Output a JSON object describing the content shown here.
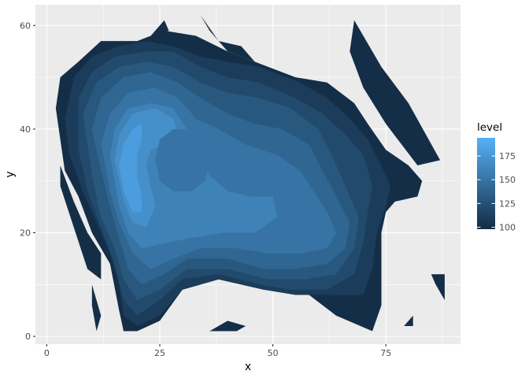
{
  "chart_data": {
    "type": "filled-contour",
    "title": "",
    "xlabel": "x",
    "ylabel": "y",
    "xlim": [
      -2.5,
      91.5
    ],
    "ylim": [
      -1.5,
      64
    ],
    "x_ticks": [
      0,
      25,
      50,
      75
    ],
    "x_tick_labels": [
      "0",
      "25",
      "50",
      "75"
    ],
    "y_ticks": [
      0,
      20,
      40,
      60
    ],
    "y_tick_labels": [
      "0",
      "20",
      "40",
      "60"
    ],
    "grid": true,
    "legend": {
      "title": "level",
      "position": "right",
      "range": [
        98,
        194
      ],
      "breaks": [
        100,
        125,
        150,
        175
      ],
      "break_labels": [
        "100",
        "125",
        "150",
        "175"
      ],
      "low_color": "#132B43",
      "high_color": "#56B1F7"
    },
    "levels": [
      {
        "level": 100,
        "polygons": [
          [
            [
              7,
              53
            ],
            [
              12,
              57
            ],
            [
              20,
              57
            ],
            [
              26,
              59
            ],
            [
              33,
              58
            ],
            [
              40,
              55
            ],
            [
              46,
              53
            ],
            [
              55,
              50
            ],
            [
              62,
              49
            ],
            [
              68,
              45
            ],
            [
              71,
              41
            ],
            [
              75,
              36
            ],
            [
              80,
              33
            ],
            [
              83,
              30
            ],
            [
              82,
              27
            ],
            [
              77,
              26
            ],
            [
              75,
              24
            ],
            [
              74,
              20
            ],
            [
              74,
              13
            ],
            [
              74,
              6
            ],
            [
              72,
              1
            ],
            [
              64,
              4
            ],
            [
              58,
              8
            ],
            [
              48,
              9
            ],
            [
              38,
              11
            ],
            [
              30,
              9
            ],
            [
              25,
              3
            ],
            [
              20,
              1
            ],
            [
              17,
              1
            ],
            [
              16,
              5
            ],
            [
              14,
              14
            ],
            [
              10,
              20
            ],
            [
              7,
              27
            ],
            [
              4,
              32
            ],
            [
              3,
              38
            ],
            [
              2,
              44
            ],
            [
              3,
              50
            ]
          ],
          [
            [
              68,
              61
            ],
            [
              74,
              52
            ],
            [
              80,
              45
            ],
            [
              87,
              34
            ],
            [
              82,
              33
            ],
            [
              75,
              41
            ],
            [
              70,
              48
            ],
            [
              67,
              55
            ]
          ],
          [
            [
              34,
              62
            ],
            [
              38,
              57
            ],
            [
              43,
              56
            ],
            [
              46,
              53
            ],
            [
              40,
              55
            ],
            [
              36,
              59
            ]
          ],
          [
            [
              26,
              61
            ],
            [
              23,
              58
            ],
            [
              27,
              59
            ]
          ],
          [
            [
              3,
              33
            ],
            [
              6,
              26
            ],
            [
              9,
              20
            ],
            [
              12,
              16
            ],
            [
              12,
              11
            ],
            [
              9,
              13
            ],
            [
              6,
              21
            ],
            [
              3,
              29
            ]
          ],
          [
            [
              10,
              10
            ],
            [
              12,
              4
            ],
            [
              11,
              1
            ],
            [
              10,
              6
            ]
          ],
          [
            [
              36,
              1
            ],
            [
              42,
              1
            ],
            [
              44,
              2
            ],
            [
              40,
              3
            ]
          ],
          [
            [
              85,
              12
            ],
            [
              88,
              12
            ],
            [
              88,
              7
            ],
            [
              86,
              10
            ]
          ],
          [
            [
              81,
              4
            ],
            [
              81,
              2
            ],
            [
              79,
              2
            ]
          ]
        ]
      },
      {
        "level": 110,
        "polygons": [
          [
            [
              6,
              50
            ],
            [
              10,
              54
            ],
            [
              16,
              56
            ],
            [
              22,
              57
            ],
            [
              28,
              56
            ],
            [
              34,
              54
            ],
            [
              40,
              53
            ],
            [
              47,
              52
            ],
            [
              56,
              49
            ],
            [
              62,
              46
            ],
            [
              67,
              42
            ],
            [
              71,
              38
            ],
            [
              74,
              33
            ],
            [
              76,
              29
            ],
            [
              75,
              25
            ],
            [
              73,
              20
            ],
            [
              72,
              13
            ],
            [
              70,
              8
            ],
            [
              63,
              8
            ],
            [
              55,
              8
            ],
            [
              48,
              9
            ],
            [
              38,
              11
            ],
            [
              30,
              9
            ],
            [
              25,
              4
            ],
            [
              20,
              2
            ],
            [
              17,
              4
            ],
            [
              16,
              10
            ],
            [
              14,
              16
            ],
            [
              11,
              22
            ],
            [
              8,
              28
            ],
            [
              5,
              35
            ],
            [
              4,
              42
            ]
          ]
        ]
      },
      {
        "level": 120,
        "polygons": [
          [
            [
              7,
              46
            ],
            [
              10,
              51
            ],
            [
              15,
              54
            ],
            [
              22,
              55
            ],
            [
              28,
              55
            ],
            [
              34,
              52
            ],
            [
              40,
              50
            ],
            [
              47,
              49
            ],
            [
              55,
              46
            ],
            [
              61,
              43
            ],
            [
              66,
              39
            ],
            [
              70,
              35
            ],
            [
              72,
              29
            ],
            [
              71,
              24
            ],
            [
              70,
              18
            ],
            [
              68,
              12
            ],
            [
              62,
              9
            ],
            [
              54,
              9
            ],
            [
              47,
              10
            ],
            [
              38,
              12
            ],
            [
              30,
              11
            ],
            [
              25,
              7
            ],
            [
              20,
              4
            ],
            [
              17,
              7
            ],
            [
              15,
              14
            ],
            [
              12,
              21
            ],
            [
              9,
              28
            ],
            [
              7,
              36
            ]
          ]
        ]
      },
      {
        "level": 130,
        "polygons": [
          [
            [
              8,
              43
            ],
            [
              11,
              49
            ],
            [
              16,
              52
            ],
            [
              22,
              53
            ],
            [
              28,
              52
            ],
            [
              34,
              49
            ],
            [
              40,
              47
            ],
            [
              47,
              46
            ],
            [
              54,
              44
            ],
            [
              60,
              40
            ],
            [
              63,
              35
            ],
            [
              66,
              29
            ],
            [
              69,
              23
            ],
            [
              68,
              17
            ],
            [
              64,
              12
            ],
            [
              57,
              11
            ],
            [
              49,
              11
            ],
            [
              40,
              13
            ],
            [
              31,
              13
            ],
            [
              25,
              9
            ],
            [
              20,
              7
            ],
            [
              17,
              11
            ],
            [
              15,
              17
            ],
            [
              12,
              23
            ],
            [
              10,
              31
            ],
            [
              9,
              37
            ]
          ]
        ]
      },
      {
        "level": 140,
        "polygons": [
          [
            [
              10,
              40
            ],
            [
              12,
              46
            ],
            [
              17,
              50
            ],
            [
              23,
              51
            ],
            [
              29,
              49
            ],
            [
              34,
              46
            ],
            [
              40,
              43
            ],
            [
              46,
              41
            ],
            [
              52,
              40
            ],
            [
              58,
              37
            ],
            [
              61,
              32
            ],
            [
              64,
              27
            ],
            [
              67,
              22
            ],
            [
              66,
              17
            ],
            [
              62,
              14
            ],
            [
              55,
              13
            ],
            [
              48,
              13
            ],
            [
              40,
              15
            ],
            [
              31,
              15
            ],
            [
              26,
              12
            ],
            [
              21,
              10
            ],
            [
              18,
              13
            ],
            [
              16,
              19
            ],
            [
              14,
              25
            ],
            [
              12,
              32
            ]
          ]
        ]
      },
      {
        "level": 150,
        "polygons": [
          [
            [
              12,
              37
            ],
            [
              14,
              43
            ],
            [
              18,
              47
            ],
            [
              24,
              48
            ],
            [
              29,
              46
            ],
            [
              33,
              42
            ],
            [
              38,
              40
            ],
            [
              44,
              37
            ],
            [
              51,
              35
            ],
            [
              56,
              32
            ],
            [
              59,
              28
            ],
            [
              62,
              24
            ],
            [
              64,
              20
            ],
            [
              62,
              17
            ],
            [
              56,
              16
            ],
            [
              49,
              16
            ],
            [
              42,
              17
            ],
            [
              34,
              17
            ],
            [
              28,
              15
            ],
            [
              23,
              13
            ],
            [
              19,
              16
            ],
            [
              16,
              22
            ],
            [
              14,
              28
            ],
            [
              13,
              33
            ]
          ]
        ]
      },
      {
        "level": 160,
        "polygons": [
          [
            [
              14,
              35
            ],
            [
              15,
              40
            ],
            [
              18,
              44
            ],
            [
              23,
              45
            ],
            [
              28,
              44
            ],
            [
              31,
              40
            ],
            [
              33,
              36
            ],
            [
              36,
              31
            ],
            [
              40,
              28
            ],
            [
              45,
              27
            ],
            [
              50,
              27
            ],
            [
              51,
              23
            ],
            [
              46,
              20
            ],
            [
              39,
              20
            ],
            [
              32,
              19
            ],
            [
              26,
              18
            ],
            [
              21,
              17
            ],
            [
              18,
              20
            ],
            [
              16,
              25
            ],
            [
              15,
              30
            ]
          ]
        ]
      },
      {
        "level": 170,
        "polygons": [
          [
            [
              15,
              34
            ],
            [
              16,
              39
            ],
            [
              19,
              43
            ],
            [
              24,
              44
            ],
            [
              28,
              42
            ],
            [
              29,
              39
            ],
            [
              26,
              37
            ],
            [
              23,
              36
            ],
            [
              22,
              33
            ],
            [
              23,
              29
            ],
            [
              24,
              25
            ],
            [
              22,
              21
            ],
            [
              19,
              22
            ],
            [
              17,
              26
            ],
            [
              16,
              30
            ]
          ]
        ]
      },
      {
        "level": 180,
        "polygons": [
          [
            [
              16,
              33
            ],
            [
              17,
              37
            ],
            [
              19,
              40
            ],
            [
              21,
              41
            ],
            [
              21,
              38
            ],
            [
              20,
              35
            ],
            [
              20,
              31
            ],
            [
              21,
              27
            ],
            [
              21,
              24
            ],
            [
              19,
              24
            ],
            [
              17,
              28
            ]
          ]
        ]
      },
      {
        "level": 150,
        "polygons": [
          [
            [
              24,
              34
            ],
            [
              25,
              38
            ],
            [
              28,
              40
            ],
            [
              32,
              40
            ],
            [
              35,
              38
            ],
            [
              36,
              34
            ],
            [
              35,
              30
            ],
            [
              32,
              28
            ],
            [
              28,
              28
            ],
            [
              25,
              30
            ]
          ]
        ]
      }
    ]
  }
}
